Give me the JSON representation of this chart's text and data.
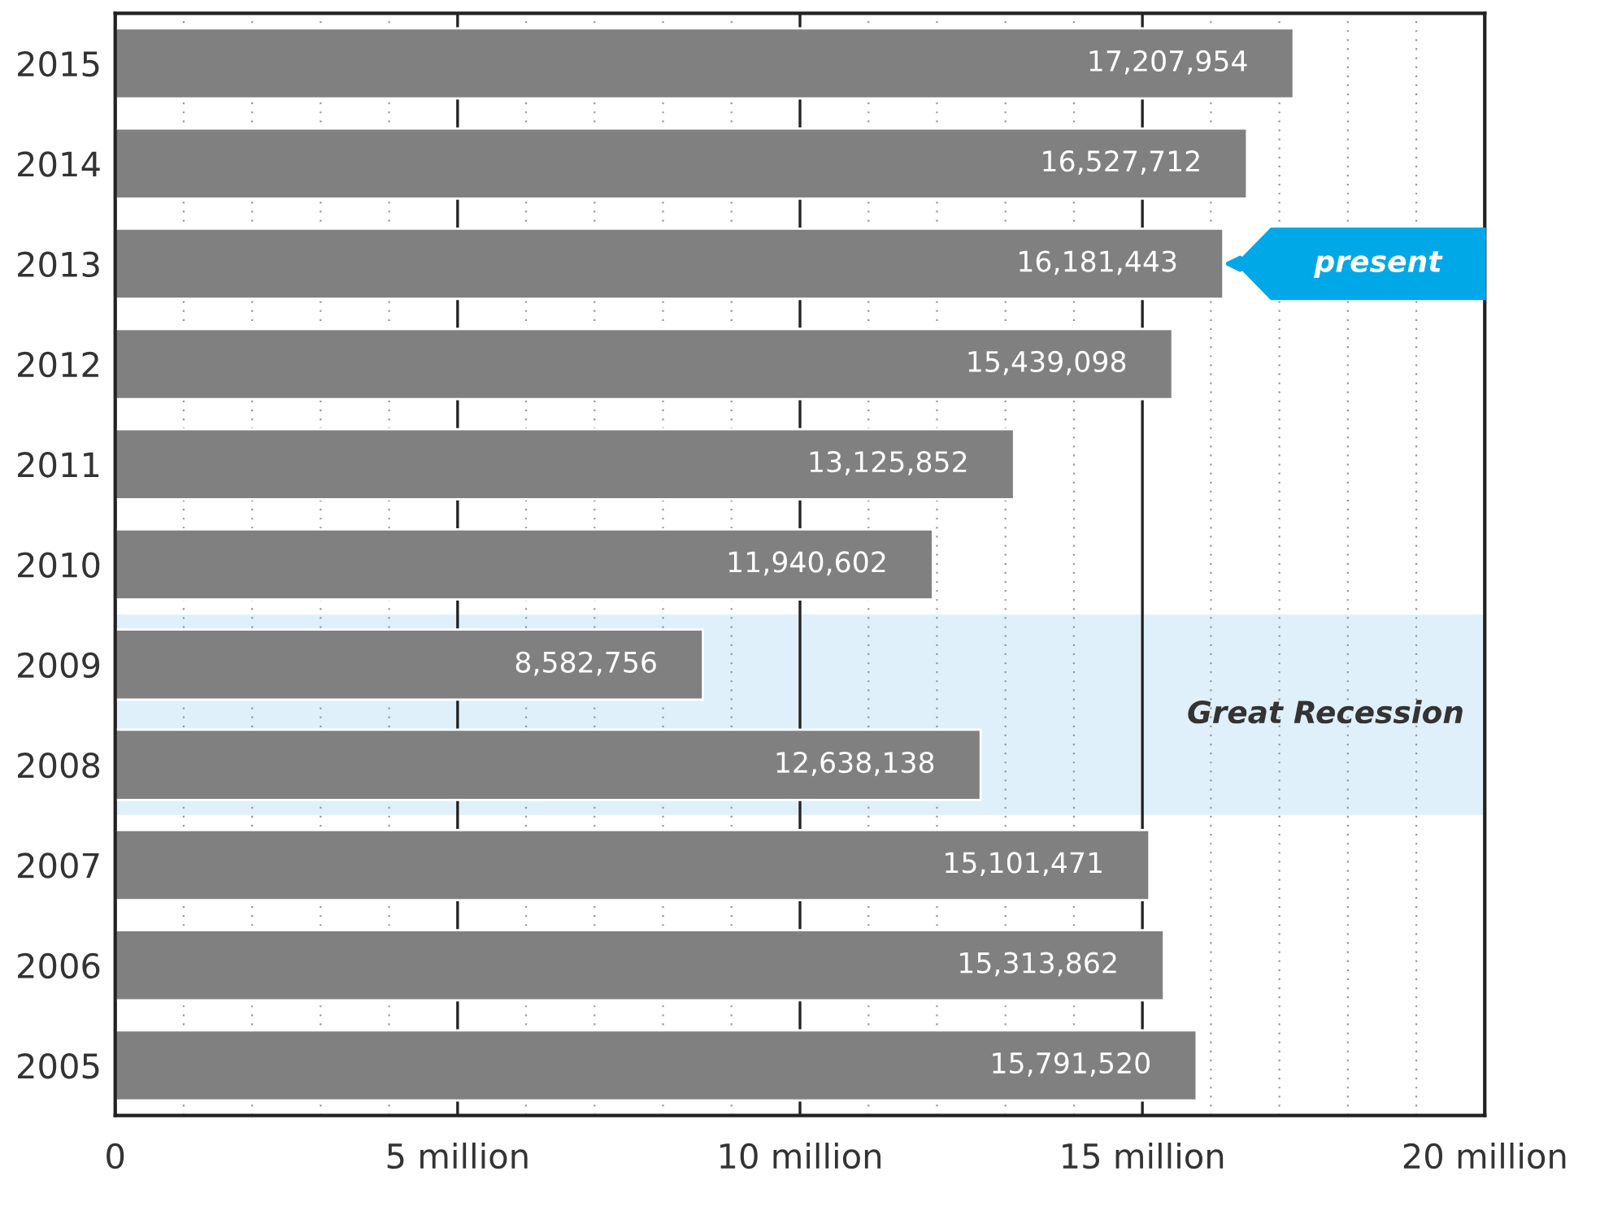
{
  "chart_data": {
    "type": "bar",
    "orientation": "horizontal",
    "categories": [
      "2015",
      "2014",
      "2013",
      "2012",
      "2011",
      "2010",
      "2009",
      "2008",
      "2007",
      "2006",
      "2005"
    ],
    "values": [
      17207954,
      16527712,
      16181443,
      15439098,
      13125852,
      11940602,
      8582756,
      12638138,
      15101471,
      15313862,
      15791520
    ],
    "color": "#808080",
    "value_labels": [
      "17,207,954",
      "16,527,712",
      "16,181,443",
      "15,439,098",
      "13,125,852",
      "11,940,602",
      "8,582,756",
      "12,638,138",
      "15,101,471",
      "15,313,862",
      "15,791,520"
    ],
    "xlim": [
      0,
      20000000
    ],
    "xticks": [
      {
        "value": 0,
        "label": "0"
      },
      {
        "value": 5000000,
        "label": "5 million"
      },
      {
        "value": 10000000,
        "label": "10 million"
      },
      {
        "value": 15000000,
        "label": "15 million"
      },
      {
        "value": 20000000,
        "label": "20 million"
      }
    ],
    "grid": "x",
    "bands": [
      {
        "axis": "y",
        "from": "2009",
        "to": "2008",
        "label": "Great Recession",
        "color": "#dff0fa"
      }
    ],
    "annotations": [
      {
        "text": "present",
        "x": 16181443,
        "y": "2013"
      }
    ]
  }
}
